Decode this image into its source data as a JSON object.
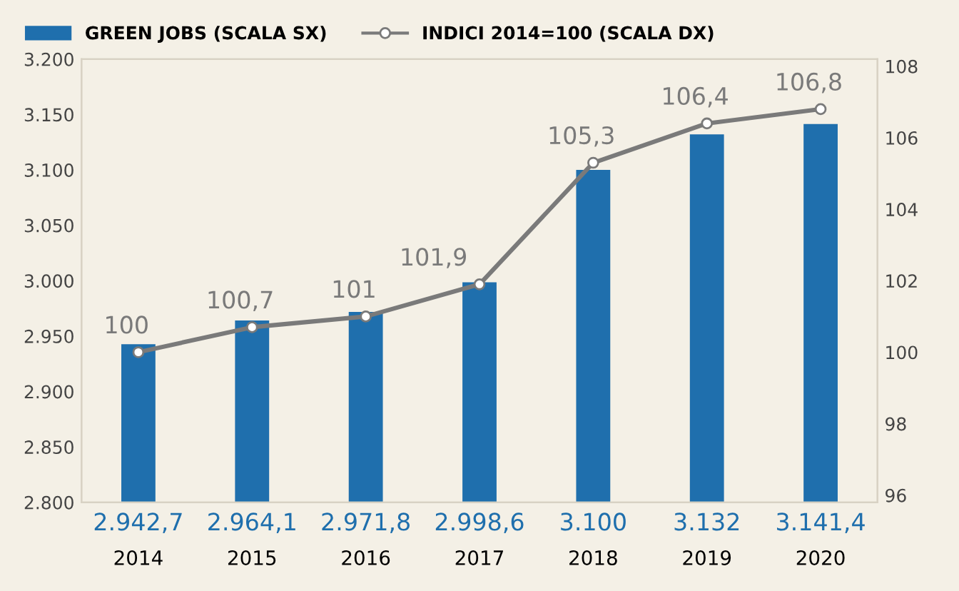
{
  "chart_data": {
    "type": "bar",
    "categories": [
      "2014",
      "2015",
      "2016",
      "2017",
      "2018",
      "2019",
      "2020"
    ],
    "series": [
      {
        "name": "GREEN JOBS (SCALA SX)",
        "color": "#1f6fad",
        "values": [
          2942.7,
          2964.1,
          2971.8,
          2998.6,
          3100,
          3132,
          3141.4
        ],
        "value_labels": [
          "2.942,7",
          "2.964,1",
          "2.971,8",
          "2.998,6",
          "3.100",
          "3.132",
          "3.141,4"
        ]
      },
      {
        "name": "INDICI 2014=100 (SCALA DX)",
        "type": "line",
        "axis": "y2",
        "color": "#7a7a7a",
        "marker": "circle",
        "values": [
          100,
          100.7,
          101,
          101.9,
          105.3,
          106.4,
          106.8
        ],
        "value_labels": [
          "100",
          "100,7",
          "101",
          "101,9",
          "105,3",
          "106,4",
          "106,8"
        ]
      }
    ],
    "ylim": [
      2800,
      3200
    ],
    "yticks": [
      {
        "value": 2800,
        "label": "2.800"
      },
      {
        "value": 2850,
        "label": "2.850"
      },
      {
        "value": 2900,
        "label": "2.900"
      },
      {
        "value": 2950,
        "label": "2.950"
      },
      {
        "value": 3000,
        "label": "3.000"
      },
      {
        "value": 3050,
        "label": "3.050"
      },
      {
        "value": 3100,
        "label": "3.100"
      },
      {
        "value": 3150,
        "label": "3.150"
      },
      {
        "value": 3200,
        "label": "3.200"
      }
    ],
    "y2lim": [
      95.8,
      108.2
    ],
    "y2ticks": [
      96,
      98,
      100,
      102,
      104,
      106,
      108
    ],
    "legend": "top left",
    "grid": false
  }
}
